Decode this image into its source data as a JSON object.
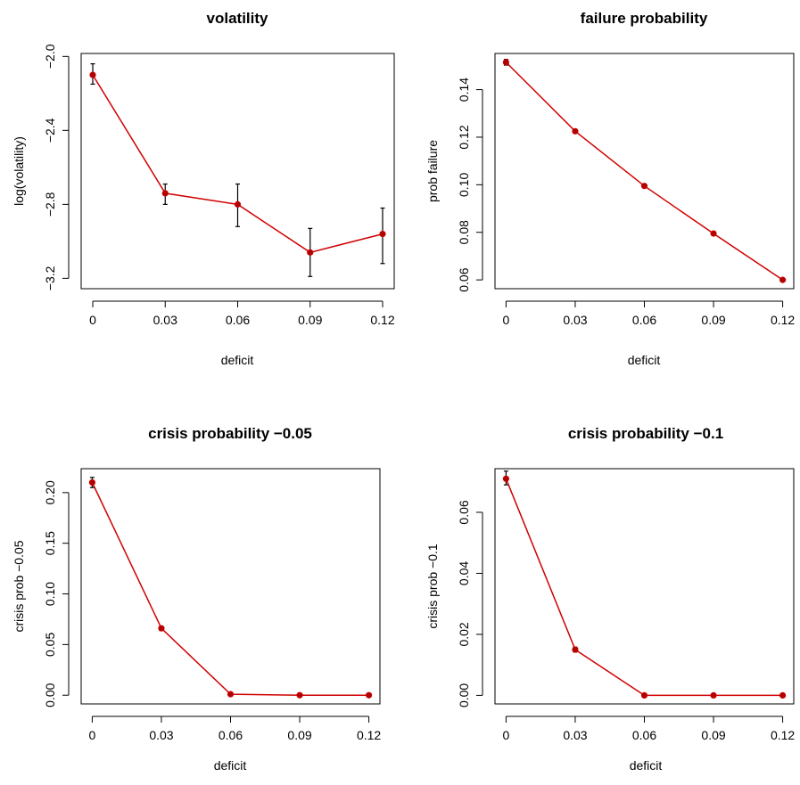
{
  "figure": {
    "background": "#ffffff"
  },
  "series_color": "#d00000",
  "point_color": "#b00000",
  "error_color": "#000000",
  "chart_data": [
    {
      "type": "line",
      "title": "volatility",
      "xlabel": "deficit",
      "ylabel": "log(volatility)",
      "x": [
        0,
        0.03,
        0.06,
        0.09,
        0.12
      ],
      "x_tick_labels": [
        "0",
        "0.03",
        "0.06",
        "0.09",
        "0.12"
      ],
      "xlim": [
        -0.0048,
        0.1248
      ],
      "y": [
        -2.1,
        -2.74,
        -2.8,
        -3.06,
        -2.96
      ],
      "y_low": [
        -2.15,
        -2.8,
        -2.92,
        -3.19,
        -3.12
      ],
      "y_high": [
        -2.04,
        -2.69,
        -2.69,
        -2.93,
        -2.82
      ],
      "yticks": [
        -3.2,
        -2.8,
        -2.4,
        -2.0
      ],
      "y_tick_labels": [
        "−3.2",
        "−2.8",
        "−2.4",
        "−2.0"
      ],
      "ylim": [
        -3.256,
        -1.984
      ],
      "grid": false,
      "legend": "none"
    },
    {
      "type": "line",
      "title": "failure probability",
      "xlabel": "deficit",
      "ylabel": "prob failure",
      "x": [
        0,
        0.03,
        0.06,
        0.09,
        0.12
      ],
      "x_tick_labels": [
        "0",
        "0.03",
        "0.06",
        "0.09",
        "0.12"
      ],
      "xlim": [
        -0.0048,
        0.1248
      ],
      "y": [
        0.1515,
        0.1225,
        0.0995,
        0.0795,
        0.06
      ],
      "y_low": [
        0.1503,
        0.1217,
        0.0988,
        0.0789,
        0.0595
      ],
      "y_high": [
        0.1527,
        0.1233,
        0.1002,
        0.0801,
        0.0605
      ],
      "yticks": [
        0.06,
        0.08,
        0.1,
        0.12,
        0.14
      ],
      "y_tick_labels": [
        "0.06",
        "0.08",
        "0.10",
        "0.12",
        "0.14"
      ],
      "ylim": [
        0.0563,
        0.1552
      ],
      "grid": false,
      "legend": "none"
    },
    {
      "type": "line",
      "title": "crisis probability −0.05",
      "xlabel": "deficit",
      "ylabel": "crisis prob −0.05",
      "x": [
        0,
        0.03,
        0.06,
        0.09,
        0.12
      ],
      "x_tick_labels": [
        "0",
        "0.03",
        "0.06",
        "0.09",
        "0.12"
      ],
      "xlim": [
        -0.0048,
        0.1248
      ],
      "y": [
        0.21,
        0.066,
        0.001,
        0.0,
        0.0
      ],
      "y_low": [
        0.205,
        0.064,
        0.0,
        0.0,
        0.0
      ],
      "y_high": [
        0.215,
        0.068,
        0.002,
        0.0,
        0.0
      ],
      "yticks": [
        0.0,
        0.05,
        0.1,
        0.15,
        0.2
      ],
      "y_tick_labels": [
        "0.00",
        "0.05",
        "0.10",
        "0.15",
        "0.20"
      ],
      "ylim": [
        -0.0086,
        0.2236
      ],
      "grid": false,
      "legend": "none"
    },
    {
      "type": "line",
      "title": "crisis probability −0.1",
      "xlabel": "deficit",
      "ylabel": "crisis prob −0.1",
      "x": [
        0,
        0.03,
        0.06,
        0.09,
        0.12
      ],
      "x_tick_labels": [
        "0",
        "0.03",
        "0.06",
        "0.09",
        "0.12"
      ],
      "xlim": [
        -0.0048,
        0.1248
      ],
      "y": [
        0.071,
        0.015,
        0.0,
        0.0,
        0.0
      ],
      "y_low": [
        0.069,
        0.0142,
        0.0,
        0.0,
        0.0
      ],
      "y_high": [
        0.0735,
        0.0158,
        0.0,
        0.0,
        0.0
      ],
      "yticks": [
        0.0,
        0.02,
        0.04,
        0.06
      ],
      "y_tick_labels": [
        "0.00",
        "0.02",
        "0.04",
        "0.06"
      ],
      "ylim": [
        -0.0028,
        0.0743
      ],
      "grid": false,
      "legend": "none"
    }
  ]
}
